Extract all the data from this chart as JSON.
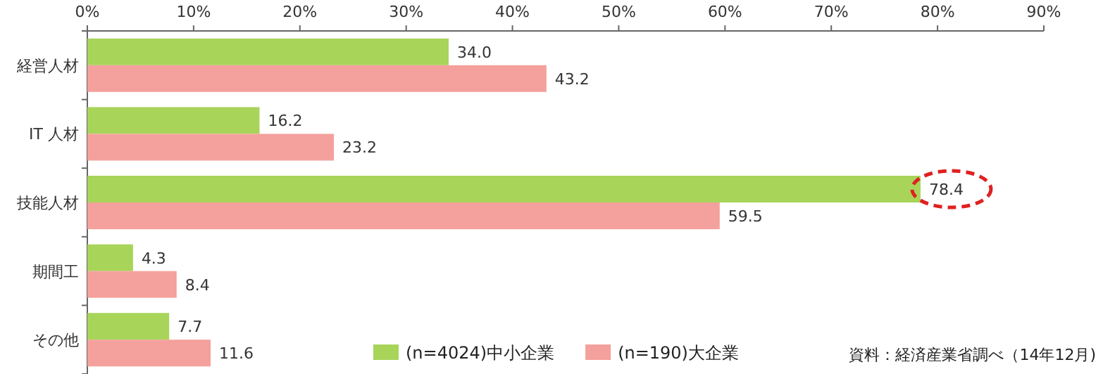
{
  "chart_data": {
    "type": "bar",
    "orientation": "horizontal",
    "categories": [
      "経営人材",
      "IT 人材",
      "技能人材",
      "期間工",
      "その他"
    ],
    "series": [
      {
        "name": "(n=4024)中小企業",
        "color": "#a8d45a",
        "values": [
          34.0,
          16.2,
          78.4,
          4.3,
          7.7
        ],
        "value_labels": [
          "34.0",
          "16.2",
          "78.4",
          "4.3",
          "7.7"
        ]
      },
      {
        "name": "(n=190)大企業",
        "color": "#f4a09c",
        "values": [
          43.2,
          23.2,
          59.5,
          8.4,
          11.6
        ],
        "value_labels": [
          "43.2",
          "23.2",
          "59.5",
          "8.4",
          "11.6"
        ]
      }
    ],
    "xlim": [
      0,
      90
    ],
    "xticks": [
      {
        "value": 0,
        "label": "0%"
      },
      {
        "value": 10,
        "label": "10%"
      },
      {
        "value": 20,
        "label": "20%"
      },
      {
        "value": 30,
        "label": "30%"
      },
      {
        "value": 40,
        "label": "40%"
      },
      {
        "value": 50,
        "label": "50%"
      },
      {
        "value": 60,
        "label": "60%"
      },
      {
        "value": 70,
        "label": "70%"
      },
      {
        "value": 80,
        "label": "80%"
      },
      {
        "value": 90,
        "label": "90%"
      }
    ],
    "grid": false,
    "legend": "bottom",
    "annotations": [
      "資料：経済産業省調べ（14年12月)"
    ]
  }
}
